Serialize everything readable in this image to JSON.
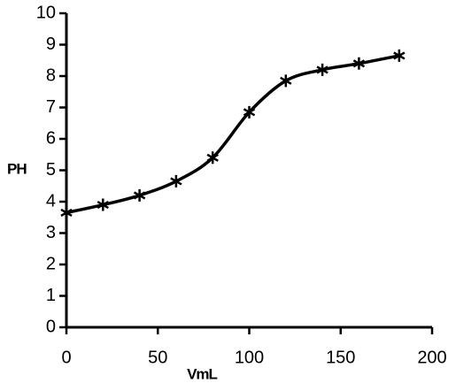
{
  "chart_data": {
    "type": "line",
    "x_label": "VmL",
    "y_label": "PH",
    "x": [
      0,
      20,
      40,
      60,
      80,
      100,
      120,
      140,
      160,
      182
    ],
    "series": [
      {
        "color": "#000000",
        "values": [
          3.65,
          3.9,
          4.2,
          4.65,
          5.4,
          6.85,
          7.85,
          8.2,
          8.4,
          8.65
        ]
      }
    ],
    "xlim": [
      0,
      200
    ],
    "xticks": [
      0,
      50,
      100,
      150,
      200
    ],
    "ylim": [
      0,
      10
    ],
    "yticks": [
      0,
      1,
      2,
      3,
      4,
      5,
      6,
      7,
      8,
      9,
      10
    ],
    "marker": "asterisk",
    "smooth": true
  }
}
